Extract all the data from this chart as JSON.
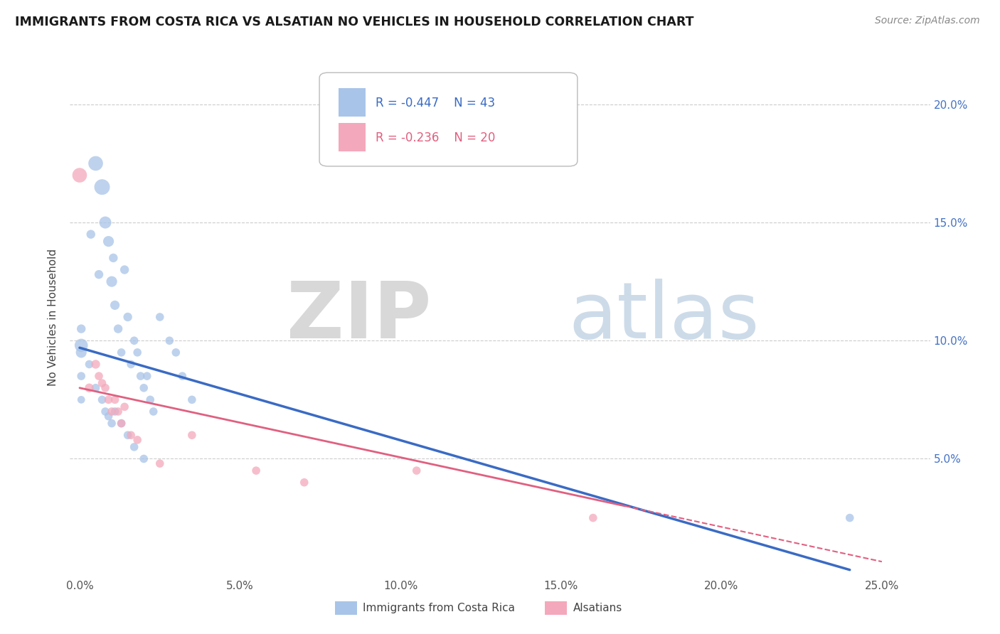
{
  "title": "IMMIGRANTS FROM COSTA RICA VS ALSATIAN NO VEHICLES IN HOUSEHOLD CORRELATION CHART",
  "source": "Source: ZipAtlas.com",
  "xlabel_vals": [
    0.0,
    5.0,
    10.0,
    15.0,
    20.0,
    25.0
  ],
  "ylabel_vals": [
    5.0,
    10.0,
    15.0,
    20.0
  ],
  "blue_label": "Immigrants from Costa Rica",
  "pink_label": "Alsatians",
  "blue_R": "-0.447",
  "blue_N": "43",
  "pink_R": "-0.236",
  "pink_N": "20",
  "blue_color": "#a8c4e8",
  "pink_color": "#f4a8bb",
  "blue_line_color": "#3a6bc4",
  "pink_line_color": "#e06080",
  "xlim": [
    -0.3,
    26.5
  ],
  "ylim": [
    0.0,
    22.0
  ],
  "blue_points": [
    [
      0.05,
      9.8
    ],
    [
      0.35,
      14.5
    ],
    [
      0.5,
      17.5
    ],
    [
      0.6,
      12.8
    ],
    [
      0.7,
      16.5
    ],
    [
      0.8,
      15.0
    ],
    [
      0.9,
      14.2
    ],
    [
      1.0,
      12.5
    ],
    [
      1.05,
      13.5
    ],
    [
      1.1,
      11.5
    ],
    [
      1.2,
      10.5
    ],
    [
      1.3,
      9.5
    ],
    [
      1.4,
      13.0
    ],
    [
      1.5,
      11.0
    ],
    [
      1.6,
      9.0
    ],
    [
      1.7,
      10.0
    ],
    [
      1.8,
      9.5
    ],
    [
      1.9,
      8.5
    ],
    [
      2.0,
      8.0
    ],
    [
      2.1,
      8.5
    ],
    [
      2.2,
      7.5
    ],
    [
      2.3,
      7.0
    ],
    [
      2.5,
      11.0
    ],
    [
      2.8,
      10.0
    ],
    [
      3.0,
      9.5
    ],
    [
      3.2,
      8.5
    ],
    [
      3.5,
      7.5
    ],
    [
      0.05,
      9.5
    ],
    [
      0.05,
      10.5
    ],
    [
      0.05,
      8.5
    ],
    [
      0.05,
      7.5
    ],
    [
      0.3,
      9.0
    ],
    [
      0.5,
      8.0
    ],
    [
      0.7,
      7.5
    ],
    [
      0.8,
      7.0
    ],
    [
      0.9,
      6.8
    ],
    [
      1.0,
      6.5
    ],
    [
      1.1,
      7.0
    ],
    [
      1.3,
      6.5
    ],
    [
      1.5,
      6.0
    ],
    [
      1.7,
      5.5
    ],
    [
      2.0,
      5.0
    ],
    [
      24.0,
      2.5
    ]
  ],
  "pink_points": [
    [
      0.0,
      17.0
    ],
    [
      0.3,
      8.0
    ],
    [
      0.5,
      9.0
    ],
    [
      0.6,
      8.5
    ],
    [
      0.7,
      8.2
    ],
    [
      0.8,
      8.0
    ],
    [
      0.9,
      7.5
    ],
    [
      1.0,
      7.0
    ],
    [
      1.1,
      7.5
    ],
    [
      1.2,
      7.0
    ],
    [
      1.3,
      6.5
    ],
    [
      1.4,
      7.2
    ],
    [
      1.6,
      6.0
    ],
    [
      1.8,
      5.8
    ],
    [
      2.5,
      4.8
    ],
    [
      3.5,
      6.0
    ],
    [
      5.5,
      4.5
    ],
    [
      7.0,
      4.0
    ],
    [
      10.5,
      4.5
    ],
    [
      16.0,
      2.5
    ]
  ],
  "blue_sizes": [
    180,
    80,
    220,
    80,
    250,
    150,
    120,
    120,
    80,
    90,
    80,
    70,
    80,
    80,
    70,
    70,
    70,
    70,
    70,
    70,
    70,
    70,
    70,
    70,
    70,
    70,
    70,
    120,
    80,
    70,
    60,
    70,
    70,
    70,
    70,
    70,
    70,
    70,
    70,
    70,
    70,
    70,
    70
  ],
  "pink_sizes": [
    220,
    80,
    80,
    70,
    70,
    70,
    70,
    70,
    70,
    70,
    70,
    70,
    70,
    70,
    70,
    70,
    70,
    70,
    70,
    70
  ]
}
